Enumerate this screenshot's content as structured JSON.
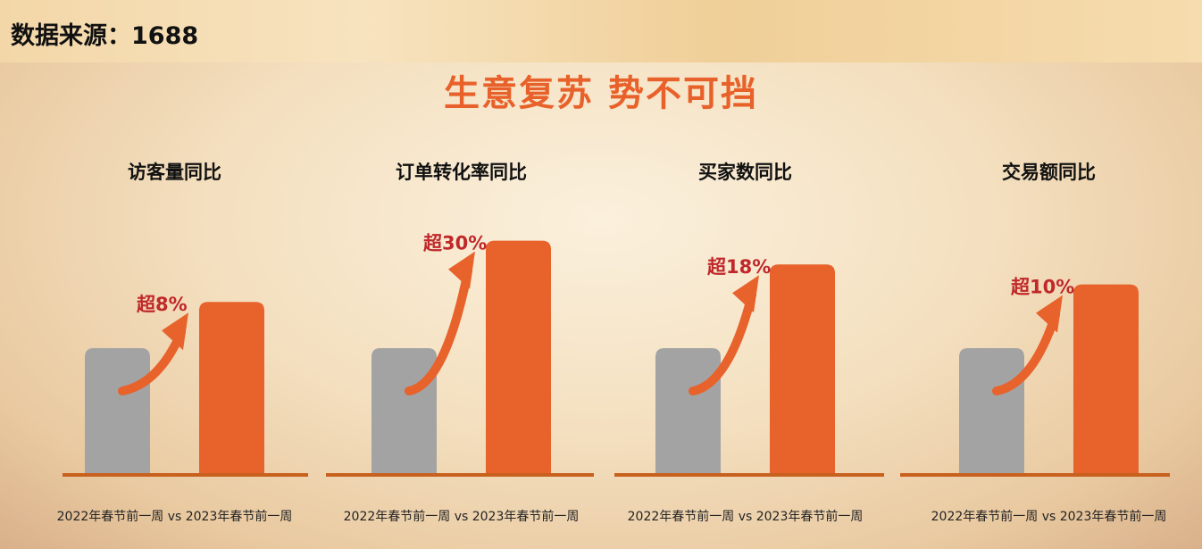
{
  "header": {
    "source": "数据来源：1688",
    "title": "生意复苏  势不可挡"
  },
  "colors": {
    "gray_bar": "#a3a3a3",
    "orange_bar": "#e8622c",
    "baseline": "#c8601e",
    "label_red": "#c0282a",
    "title_orange": "#e8612a"
  },
  "chart_data": [
    {
      "type": "bar",
      "title": "访客量同比",
      "categories": [
        "2022年春节前一周",
        "2023年春节前一周"
      ],
      "xlabel": "2022年春节前一周 vs  2023年春节前一周",
      "values": [
        100,
        137
      ],
      "annotation": "超8%"
    },
    {
      "type": "bar",
      "title": "订单转化率同比",
      "categories": [
        "2022年春节前一周",
        "2023年春节前一周"
      ],
      "xlabel": "2022年春节前一周 vs  2023年春节前一周",
      "values": [
        100,
        186
      ],
      "annotation": "超30%"
    },
    {
      "type": "bar",
      "title": "买家数同比",
      "categories": [
        "2022年春节前一周",
        "2023年春节前一周"
      ],
      "xlabel": "2022年春节前一周 vs  2023年春节前一周",
      "values": [
        100,
        167
      ],
      "annotation": "超18%"
    },
    {
      "type": "bar",
      "title": "交易额同比",
      "categories": [
        "2022年春节前一周",
        "2023年春节前一周"
      ],
      "xlabel": "2022年春节前一周 vs  2023年春节前一周",
      "values": [
        100,
        151
      ],
      "annotation": "超10%"
    }
  ]
}
